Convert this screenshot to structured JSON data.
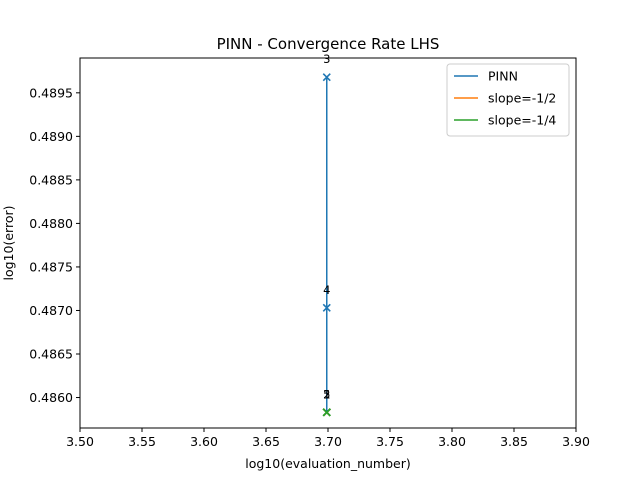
{
  "chart_data": {
    "type": "line",
    "title": "PINN - Convergence Rate LHS",
    "xlabel": "log10(evaluation_number)",
    "ylabel": "log10(error)",
    "xlim": [
      3.5,
      3.9
    ],
    "ylim": [
      0.48565,
      0.4899
    ],
    "xticks": [
      "3.50",
      "3.55",
      "3.60",
      "3.65",
      "3.70",
      "3.75",
      "3.80",
      "3.85",
      "3.90"
    ],
    "yticks": [
      "0.4860",
      "0.4865",
      "0.4870",
      "0.4875",
      "0.4880",
      "0.4885",
      "0.4890",
      "0.4895"
    ],
    "legend_position": "top-right",
    "series": [
      {
        "name": "PINN",
        "color": "#1f77b4",
        "marker": "x",
        "x": [
          3.699,
          3.699,
          3.699,
          3.699,
          3.699
        ],
        "y": [
          0.48583,
          0.48583,
          0.48968,
          0.48703,
          0.48583
        ],
        "labels": [
          "1",
          "2",
          "3",
          "4",
          "5"
        ]
      },
      {
        "name": "slope=-1/2",
        "color": "#ff7f0e",
        "marker": "x",
        "x": [
          3.699,
          3.699,
          3.699,
          3.699,
          3.699
        ],
        "y": [
          0.48583,
          0.48583,
          0.48583,
          0.48583,
          0.48583
        ]
      },
      {
        "name": "slope=-1/4",
        "color": "#2ca02c",
        "marker": "x",
        "x": [
          3.699,
          3.699,
          3.699,
          3.699,
          3.699
        ],
        "y": [
          0.48583,
          0.48583,
          0.48583,
          0.48583,
          0.48583
        ]
      }
    ]
  }
}
